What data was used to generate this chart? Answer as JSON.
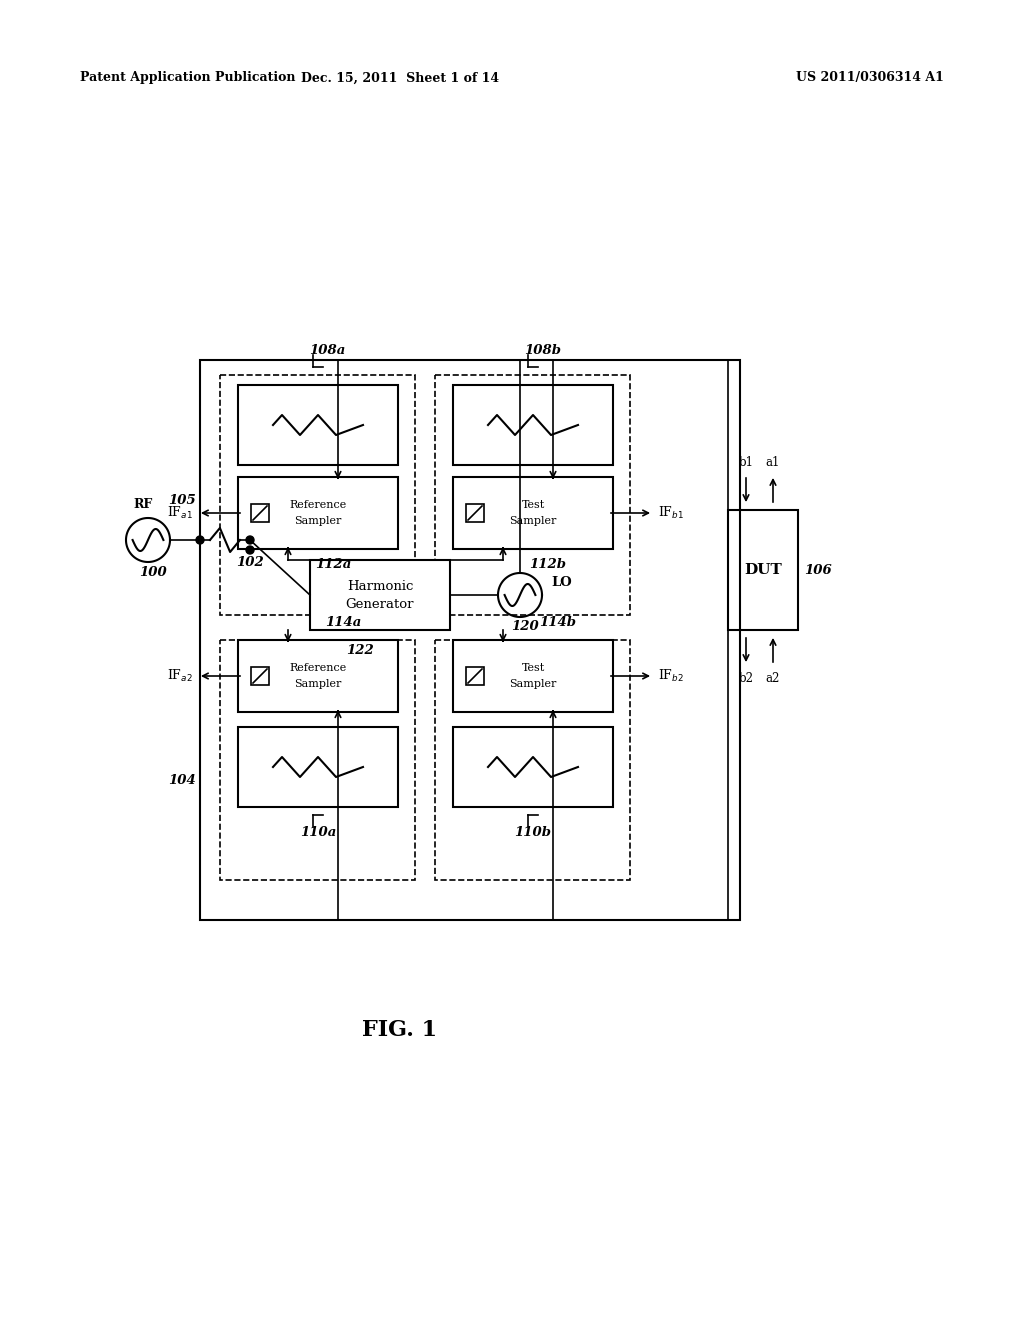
{
  "header_left": "Patent Application Publication",
  "header_mid": "Dec. 15, 2011  Sheet 1 of 14",
  "header_right": "US 2011/0306314 A1",
  "fig_label": "FIG. 1",
  "bg_color": "#ffffff",
  "line_color": "#000000"
}
